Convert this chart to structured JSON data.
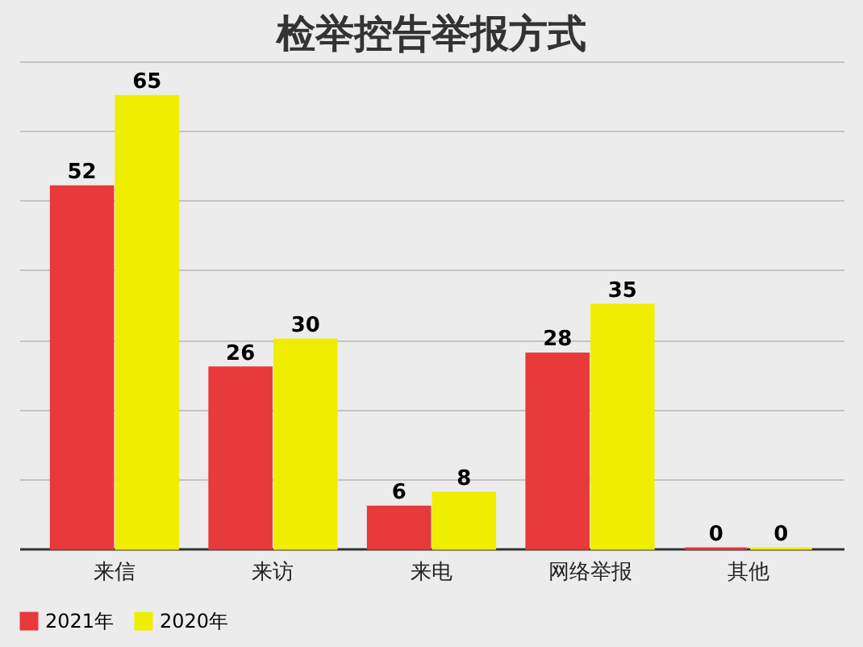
{
  "chart_data": {
    "type": "bar",
    "title": "检举控告举报方式",
    "categories": [
      "来信",
      "来访",
      "来电",
      "网络举报",
      "其他"
    ],
    "series": [
      {
        "name": "2021年",
        "color": "#e8393b",
        "values": [
          52,
          26,
          6,
          28,
          0
        ]
      },
      {
        "name": "2020年",
        "color": "#f0ee00",
        "values": [
          65,
          30,
          8,
          35,
          0
        ]
      }
    ],
    "ylim": [
      0,
      70
    ],
    "yticks": [
      {
        "value": 0,
        "label": null
      },
      {
        "value": 10,
        "label": null
      },
      {
        "value": 20,
        "label": null
      },
      {
        "value": 30,
        "label": null
      },
      {
        "value": 40,
        "label": null
      },
      {
        "value": 50,
        "label": null
      },
      {
        "value": 60,
        "label": null
      },
      {
        "value": 70,
        "label": null
      }
    ],
    "grid": "y",
    "tick_labels": "x",
    "data_labels": true,
    "legend": "bottom"
  }
}
